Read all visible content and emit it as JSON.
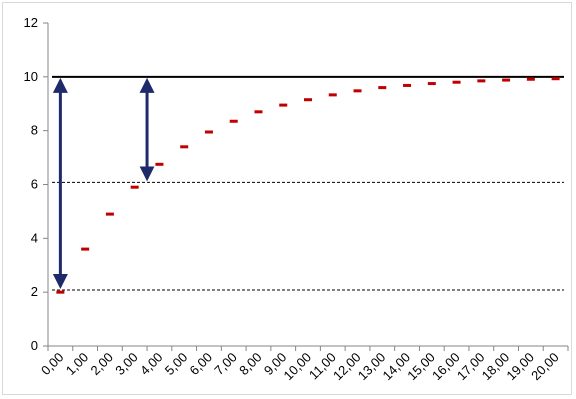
{
  "chart_data": {
    "type": "scatter",
    "title": "",
    "xlabel": "",
    "ylabel": "",
    "ylim": [
      0,
      12
    ],
    "yticks": [
      0,
      2,
      4,
      6,
      8,
      10,
      12
    ],
    "x_tick_labels": [
      "0,00",
      "1,00",
      "2,00",
      "3,00",
      "4,00",
      "5,00",
      "6,00",
      "7,00",
      "8,00",
      "9,00",
      "10,00",
      "11,00",
      "12,00",
      "13,00",
      "14,00",
      "15,00",
      "16,00",
      "17,00",
      "18,00",
      "19,00",
      "20,00"
    ],
    "series": [
      {
        "marker": "dash",
        "color": "#c00000",
        "x": [
          0,
          1,
          2,
          3,
          4,
          5,
          6,
          7,
          8,
          9,
          10,
          11,
          12,
          13,
          14,
          15,
          16,
          17,
          18,
          19,
          20
        ],
        "values": [
          2.0,
          3.6,
          4.9,
          5.9,
          6.75,
          7.4,
          7.95,
          8.35,
          8.7,
          8.95,
          9.15,
          9.33,
          9.48,
          9.6,
          9.68,
          9.75,
          9.8,
          9.85,
          9.88,
          9.91,
          9.93
        ]
      }
    ],
    "reference_lines": [
      {
        "y": 10,
        "style": "solid",
        "color": "#000000"
      },
      {
        "y": 6.08,
        "style": "dashed",
        "color": "#000000"
      },
      {
        "y": 2.08,
        "style": "dashed",
        "color": "#000000"
      }
    ],
    "arrows": [
      {
        "x": 0,
        "y_from": 2.08,
        "y_to": 10,
        "color": "#1f2a6b",
        "double_headed": true
      },
      {
        "x": 3.5,
        "y_from": 6.08,
        "y_to": 10,
        "color": "#1f2a6b",
        "double_headed": true
      }
    ],
    "grid": false,
    "legend": "none"
  }
}
